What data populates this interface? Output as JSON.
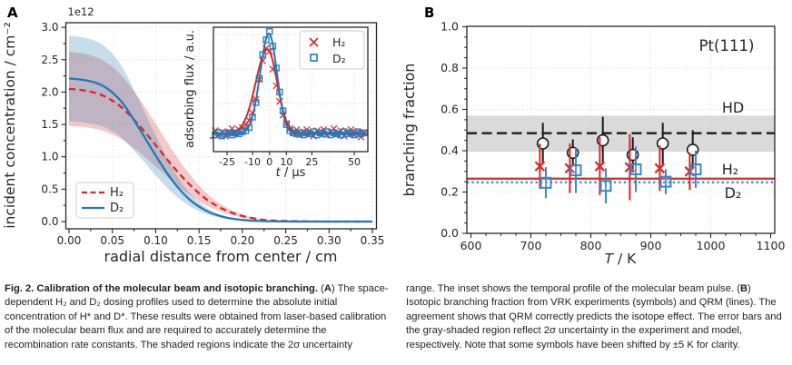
{
  "figure": {
    "panel_a_label": "A",
    "panel_b_label": "B"
  },
  "chart_data": [
    {
      "id": "beam-profile",
      "type": "line",
      "xlabel": "radial distance from center / cm",
      "ylabel": "incident concentration / cm⁻²",
      "offset_label": "1e12",
      "xticks": [
        0.0,
        0.05,
        0.1,
        0.15,
        0.2,
        0.25,
        0.3,
        0.35
      ],
      "yticks": [
        0.0,
        0.5,
        1.0,
        1.5,
        2.0,
        2.5,
        3.0
      ],
      "grid": true,
      "legend_position": "lower-left",
      "series": [
        {
          "name": "H₂",
          "color": "#d7282a",
          "style": "dashed",
          "band_frac": 0.28,
          "x": [
            0,
            0.02,
            0.04,
            0.06,
            0.08,
            0.1,
            0.12,
            0.14,
            0.16,
            0.18,
            0.2,
            0.22,
            0.24,
            0.28,
            0.32,
            0.35
          ],
          "y": [
            2.05,
            2.02,
            1.94,
            1.77,
            1.5,
            1.18,
            0.85,
            0.56,
            0.33,
            0.18,
            0.085,
            0.035,
            0.012,
            0.002,
            0.0,
            0.0
          ]
        },
        {
          "name": "D₂",
          "color": "#2179b5",
          "style": "solid",
          "band_frac": 0.3,
          "x": [
            0,
            0.02,
            0.04,
            0.06,
            0.08,
            0.1,
            0.12,
            0.14,
            0.16,
            0.18,
            0.2,
            0.22,
            0.24,
            0.28,
            0.32,
            0.35
          ],
          "y": [
            2.21,
            2.18,
            2.09,
            1.86,
            1.46,
            1.02,
            0.62,
            0.33,
            0.155,
            0.065,
            0.025,
            0.008,
            0.003,
            0.0,
            0.0,
            0.0
          ]
        }
      ]
    },
    {
      "id": "beam-pulse-inset",
      "type": "line+scatter",
      "xlabel_var": "t",
      "xlabel_rest": " / μs",
      "ylabel": "adsorbing flux / a.u.",
      "xticks": [
        -25,
        -10,
        0,
        10,
        25,
        50
      ],
      "xrange": [
        -33,
        57
      ],
      "grid": true,
      "legend_position": "upper-right",
      "scatter_t": [
        -32,
        -30,
        -28,
        -26,
        -24,
        -22,
        -20,
        -18,
        -16,
        -14,
        -12,
        -10,
        -8,
        -6,
        -4,
        -2,
        0,
        2,
        4,
        6,
        8,
        10,
        12,
        14,
        16,
        18,
        20,
        22,
        24,
        26,
        28,
        30,
        32,
        34,
        36,
        38,
        40,
        42,
        44,
        46,
        48,
        50,
        52,
        54,
        56
      ],
      "series": [
        {
          "name": "H₂",
          "color": "#d7282a",
          "marker": "x",
          "curve": {
            "base": 0.045,
            "amp": 0.805,
            "center": -1.2,
            "sigma_left": 6.9,
            "sigma_right": 5.7
          },
          "scatter": [
            0.07,
            0.03,
            0.06,
            0.02,
            0.06,
            0.09,
            0.05,
            0.08,
            0.1,
            0.13,
            0.17,
            0.24,
            0.37,
            0.56,
            0.74,
            0.86,
            0.83,
            0.66,
            0.5,
            0.35,
            0.22,
            0.14,
            0.09,
            0.05,
            0.08,
            0.03,
            0.06,
            0.08,
            0.04,
            0.02,
            0.07,
            0.05,
            0.08,
            0.03,
            0.06,
            0.09,
            0.04,
            0.07,
            0.02,
            0.05,
            0.08,
            0.03,
            0.06,
            0.01,
            0.05
          ]
        },
        {
          "name": "D₂",
          "color": "#2179b5",
          "marker": "square",
          "curve": {
            "base": 0.04,
            "amp": 0.96,
            "center": -0.3,
            "sigma_left": 5.2,
            "sigma_right": 4.7
          },
          "scatter": [
            0.03,
            0.05,
            0.02,
            0.04,
            0.05,
            0.03,
            0.05,
            0.04,
            0.06,
            0.07,
            0.1,
            0.2,
            0.34,
            0.57,
            0.8,
            0.94,
            1.02,
            0.88,
            0.67,
            0.44,
            0.26,
            0.13,
            0.07,
            0.05,
            0.04,
            0.05,
            0.03,
            0.05,
            0.04,
            0.06,
            0.03,
            0.05,
            0.04,
            0.06,
            0.03,
            0.05,
            0.04,
            0.03,
            0.06,
            0.04,
            0.05,
            0.03,
            0.06,
            0.04,
            0.05
          ]
        }
      ]
    },
    {
      "id": "branching-fraction",
      "type": "scatter",
      "annotation": "Pt(111)",
      "xlabel_var": "T",
      "xlabel_rest": " / K",
      "ylabel": "branching fraction",
      "xticks": [
        600,
        700,
        800,
        900,
        1000,
        1100
      ],
      "yticks": [
        0.0,
        0.2,
        0.4,
        0.6,
        0.8,
        1.0
      ],
      "xlim": [
        600,
        1100
      ],
      "ylim": [
        0.0,
        1.0
      ],
      "grid": true,
      "temperatures": [
        720,
        770,
        820,
        870,
        920,
        970
      ],
      "series": [
        {
          "name": "HD",
          "color": "#1a1a1a",
          "marker": "circle",
          "dx": 0,
          "values": [
            0.435,
            0.39,
            0.45,
            0.38,
            0.435,
            0.405
          ],
          "err": [
            0.1,
            0.065,
            0.115,
            0.085,
            0.1,
            0.095
          ],
          "model_line": 0.485,
          "model_band": [
            0.395,
            0.57
          ],
          "line_style": "dashed"
        },
        {
          "name": "H₂",
          "color": "#d7282a",
          "marker": "x",
          "dx": -5,
          "values": [
            0.325,
            0.315,
            0.325,
            0.32,
            0.315,
            0.3
          ],
          "err": [
            0.11,
            0.12,
            0.14,
            0.16,
            0.11,
            0.09
          ],
          "model_line": 0.265,
          "line_style": "solid"
        },
        {
          "name": "D₂",
          "color": "#3a87c8",
          "marker": "square",
          "dx": 5,
          "values": [
            0.245,
            0.305,
            0.23,
            0.31,
            0.25,
            0.31
          ],
          "err": [
            0.075,
            0.11,
            0.085,
            0.11,
            0.06,
            0.09
          ],
          "model_line": 0.247,
          "line_style": "dotted"
        }
      ]
    }
  ],
  "caption": {
    "left": [
      {
        "text": "Fig. 2. Calibration of the molecular beam and isotopic branching.",
        "bold": true
      },
      {
        "text": " ("
      },
      {
        "text": "A",
        "bold": true
      },
      {
        "text": ") The space-dependent H₂ and D₂ dosing profiles used to determine the absolute initial concentration of H* and D*. These results were obtained from laser-based calibration of the molecular beam flux and are required to accurately determine the recombination rate constants. The shaded regions indicate the 2σ uncertainty"
      }
    ],
    "right": [
      {
        "text": "range. The inset shows the temporal profile of the molecular beam pulse. "
      },
      {
        "text": "("
      },
      {
        "text": "B",
        "bold": true
      },
      {
        "text": ") Isotopic branching fraction from VRK experiments (symbols) and QRM (lines). The agreement shows that QRM correctly predicts the isotope effect. The error bars and the gray-shaded region reflect 2σ uncertainty in the experiment and model, respectively. Note that some symbols have been shifted by ±5 K for clarity."
      }
    ]
  },
  "colors": {
    "h2_red": "#d7282a",
    "d2_blue": "#2179b5",
    "d2_marker_blue": "#3a87c8",
    "hd_black": "#1a1a1a",
    "gray_band": "#d3d3d3",
    "grid": "#dcdcdc",
    "spine": "#262626"
  }
}
